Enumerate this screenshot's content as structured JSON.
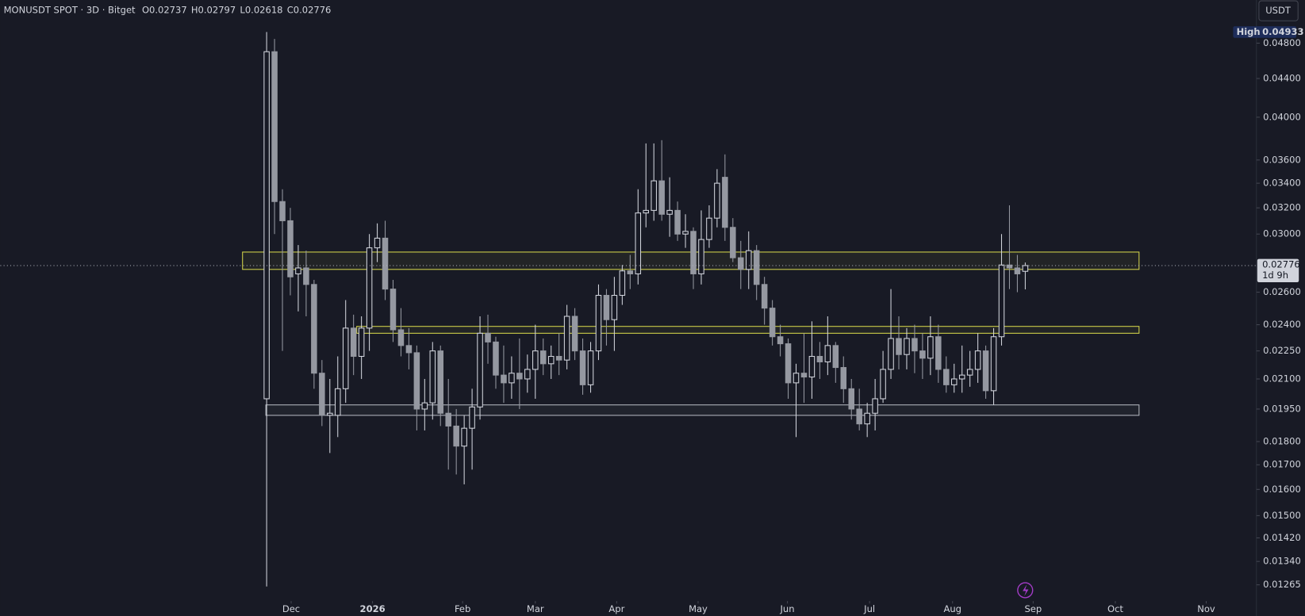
{
  "chart_data": {
    "type": "candlestick",
    "header": {
      "symbol": "MONUSDT SPOT · 3D · Bitget",
      "ohlc": [
        {
          "key": "O",
          "value": "0.02737"
        },
        {
          "key": "H",
          "value": "0.02797"
        },
        {
          "key": "L",
          "value": "0.02618"
        },
        {
          "key": "C",
          "value": "0.02776"
        }
      ]
    },
    "currency": "USDT",
    "log_scale": true,
    "up_color": "#d1d4dc",
    "down_color": "#9598a1",
    "x": [
      0,
      1,
      2,
      3,
      4,
      5,
      6,
      7,
      8,
      9,
      10,
      11,
      12,
      13,
      14,
      15,
      16,
      17,
      18,
      19,
      20,
      21,
      22,
      23,
      24,
      25,
      26,
      27,
      28,
      29,
      30,
      31,
      32,
      33,
      34,
      35,
      36,
      37,
      38,
      39,
      40,
      41,
      42,
      43,
      44,
      45,
      46,
      47,
      48,
      49,
      50,
      51,
      52,
      53,
      54,
      55,
      56,
      57,
      58,
      59,
      60,
      61,
      62,
      63,
      64,
      65,
      66,
      67,
      68,
      69,
      70,
      71,
      72,
      73,
      74,
      75,
      76,
      77,
      78,
      79,
      80,
      81,
      82,
      83,
      84,
      85,
      86,
      87,
      88,
      89,
      90,
      91,
      92,
      93,
      94,
      95,
      96
    ],
    "open": [
      0.02,
      0.047,
      0.0325,
      0.031,
      0.0272,
      0.0276,
      0.0265,
      0.0213,
      0.0192,
      0.0192,
      0.0205,
      0.0238,
      0.0222,
      0.0238,
      0.029,
      0.0297,
      0.0262,
      0.0237,
      0.0228,
      0.0224,
      0.0195,
      0.0198,
      0.0225,
      0.0193,
      0.0187,
      0.0178,
      0.0186,
      0.0196,
      0.0235,
      0.023,
      0.0212,
      0.0208,
      0.0213,
      0.021,
      0.0215,
      0.0225,
      0.0218,
      0.0222,
      0.022,
      0.0245,
      0.0225,
      0.0207,
      0.0225,
      0.0258,
      0.0243,
      0.0258,
      0.0274,
      0.0272,
      0.0316,
      0.0318,
      0.0342,
      0.0315,
      0.0318,
      0.03,
      0.0302,
      0.0272,
      0.0296,
      0.0312,
      0.0345,
      0.0305,
      0.0283,
      0.0275,
      0.0288,
      0.0265,
      0.025,
      0.0233,
      0.0229,
      0.0208,
      0.0213,
      0.0211,
      0.0222,
      0.0219,
      0.0228,
      0.0216,
      0.0205,
      0.0195,
      0.0188,
      0.0193,
      0.02,
      0.0215,
      0.0232,
      0.0223,
      0.0232,
      0.0225,
      0.0221,
      0.0233,
      0.0215,
      0.0207,
      0.021,
      0.0212,
      0.0215,
      0.0225,
      0.0204,
      0.0233,
      0.0278,
      0.0276,
      0.02737
    ],
    "high": [
      0.04933,
      0.0485,
      0.0335,
      0.032,
      0.0292,
      0.0288,
      0.0268,
      0.022,
      0.021,
      0.0222,
      0.0255,
      0.0246,
      0.0245,
      0.03,
      0.0308,
      0.031,
      0.0268,
      0.025,
      0.0238,
      0.0228,
      0.021,
      0.023,
      0.0228,
      0.021,
      0.0195,
      0.0192,
      0.0205,
      0.0245,
      0.0246,
      0.0233,
      0.0228,
      0.0222,
      0.0232,
      0.0223,
      0.024,
      0.0232,
      0.0228,
      0.0235,
      0.0252,
      0.025,
      0.0232,
      0.023,
      0.0265,
      0.0262,
      0.027,
      0.0278,
      0.0285,
      0.0335,
      0.0375,
      0.0375,
      0.0378,
      0.0345,
      0.0325,
      0.0315,
      0.0305,
      0.0318,
      0.0322,
      0.0352,
      0.0365,
      0.0312,
      0.0295,
      0.0302,
      0.0292,
      0.027,
      0.0255,
      0.024,
      0.0232,
      0.0218,
      0.0235,
      0.0242,
      0.023,
      0.0245,
      0.023,
      0.0222,
      0.021,
      0.0205,
      0.0198,
      0.021,
      0.0225,
      0.0262,
      0.0245,
      0.0238,
      0.024,
      0.0235,
      0.0245,
      0.024,
      0.0222,
      0.0218,
      0.0228,
      0.0225,
      0.0235,
      0.0228,
      0.0238,
      0.03,
      0.0322,
      0.0285,
      0.02797
    ],
    "low": [
      0.0126,
      0.03,
      0.0225,
      0.0258,
      0.0248,
      0.0245,
      0.0205,
      0.0187,
      0.0175,
      0.0182,
      0.0198,
      0.0212,
      0.021,
      0.0225,
      0.028,
      0.0255,
      0.023,
      0.0222,
      0.0215,
      0.0185,
      0.0185,
      0.019,
      0.0187,
      0.0168,
      0.0166,
      0.0162,
      0.0168,
      0.019,
      0.0218,
      0.0205,
      0.0198,
      0.02,
      0.0195,
      0.0203,
      0.02,
      0.0212,
      0.021,
      0.0212,
      0.0215,
      0.022,
      0.0202,
      0.0203,
      0.022,
      0.0228,
      0.0225,
      0.0252,
      0.0262,
      0.0265,
      0.0305,
      0.031,
      0.031,
      0.0298,
      0.0295,
      0.029,
      0.0262,
      0.0265,
      0.029,
      0.0305,
      0.0295,
      0.028,
      0.0262,
      0.0262,
      0.0255,
      0.024,
      0.0228,
      0.0222,
      0.02,
      0.0182,
      0.0198,
      0.02,
      0.021,
      0.0212,
      0.0208,
      0.0198,
      0.019,
      0.0185,
      0.0182,
      0.0185,
      0.0198,
      0.021,
      0.0215,
      0.0215,
      0.0213,
      0.021,
      0.0212,
      0.0208,
      0.0203,
      0.0203,
      0.0203,
      0.0206,
      0.0208,
      0.02,
      0.0197,
      0.0228,
      0.0262,
      0.026,
      0.02618
    ],
    "close": [
      0.047,
      0.0325,
      0.031,
      0.027,
      0.0276,
      0.0265,
      0.0213,
      0.0192,
      0.0193,
      0.0205,
      0.0238,
      0.0222,
      0.0238,
      0.029,
      0.0297,
      0.0262,
      0.0237,
      0.0228,
      0.0224,
      0.0195,
      0.0198,
      0.0225,
      0.0193,
      0.0187,
      0.0178,
      0.0186,
      0.0196,
      0.0235,
      0.023,
      0.0212,
      0.0208,
      0.0213,
      0.021,
      0.0215,
      0.0225,
      0.0218,
      0.0222,
      0.022,
      0.0245,
      0.0225,
      0.0207,
      0.0225,
      0.0258,
      0.0243,
      0.0258,
      0.0274,
      0.0272,
      0.0316,
      0.0318,
      0.0342,
      0.0315,
      0.0318,
      0.03,
      0.0302,
      0.0272,
      0.0296,
      0.0312,
      0.034,
      0.0305,
      0.0283,
      0.0275,
      0.0288,
      0.0265,
      0.025,
      0.0233,
      0.0229,
      0.0208,
      0.0213,
      0.0211,
      0.0222,
      0.0219,
      0.0228,
      0.0216,
      0.0205,
      0.0195,
      0.0188,
      0.0193,
      0.02,
      0.0215,
      0.0232,
      0.0223,
      0.0232,
      0.0225,
      0.0221,
      0.0233,
      0.0215,
      0.0207,
      0.021,
      0.0212,
      0.0215,
      0.0225,
      0.0204,
      0.0233,
      0.0278,
      0.0276,
      0.0272,
      0.02776
    ],
    "xlim": [
      -33.7,
      124.2
    ],
    "xticks": [
      {
        "value": 3.1,
        "label": "Dec"
      },
      {
        "value": 13.4,
        "label": "2026"
      },
      {
        "value": 24.8,
        "label": "Feb"
      },
      {
        "value": 34,
        "label": "Mar"
      },
      {
        "value": 44.3,
        "label": "Apr"
      },
      {
        "value": 54.6,
        "label": "May"
      },
      {
        "value": 65.9,
        "label": "Jun"
      },
      {
        "value": 76.3,
        "label": "Jul"
      },
      {
        "value": 86.8,
        "label": "Aug"
      },
      {
        "value": 97,
        "label": "Sep"
      },
      {
        "value": 107.4,
        "label": "Oct"
      },
      {
        "value": 118.9,
        "label": "Nov"
      }
    ],
    "ylim": [
      0.01223,
      0.05338
    ],
    "yticks": [
      {
        "value": 0.048,
        "label": "0.04800"
      },
      {
        "value": 0.044,
        "label": "0.04400"
      },
      {
        "value": 0.04,
        "label": "0.04000"
      },
      {
        "value": 0.036,
        "label": "0.03600"
      },
      {
        "value": 0.034,
        "label": "0.03400"
      },
      {
        "value": 0.032,
        "label": "0.03200"
      },
      {
        "value": 0.03,
        "label": "0.03000"
      },
      {
        "value": 0.026,
        "label": "0.02600"
      },
      {
        "value": 0.024,
        "label": "0.02400"
      },
      {
        "value": 0.0225,
        "label": "0.02250"
      },
      {
        "value": 0.021,
        "label": "0.02100"
      },
      {
        "value": 0.0195,
        "label": "0.01950"
      },
      {
        "value": 0.018,
        "label": "0.01800"
      },
      {
        "value": 0.017,
        "label": "0.01700"
      },
      {
        "value": 0.016,
        "label": "0.01600"
      },
      {
        "value": 0.015,
        "label": "0.01500"
      },
      {
        "value": 0.0142,
        "label": "0.01420"
      },
      {
        "value": 0.0134,
        "label": "0.01340"
      },
      {
        "value": 0.01265,
        "label": "0.01265"
      }
    ],
    "zones": [
      {
        "x": [
          -3.05,
          110.4
        ],
        "y": [
          0.0275,
          0.0287
        ],
        "color": "#d4d44a"
      },
      {
        "x": [
          11.4,
          110.4
        ],
        "y": [
          0.0235,
          0.0239
        ],
        "color": "#d4d44a"
      },
      {
        "x": [
          -0.1,
          110.4
        ],
        "y": [
          0.0192,
          0.0197
        ],
        "color": "#b2b5be"
      }
    ],
    "last_price": 0.02776,
    "countdown": "1d 9h",
    "high_marker": {
      "label": "High",
      "value": 0.04933
    }
  }
}
